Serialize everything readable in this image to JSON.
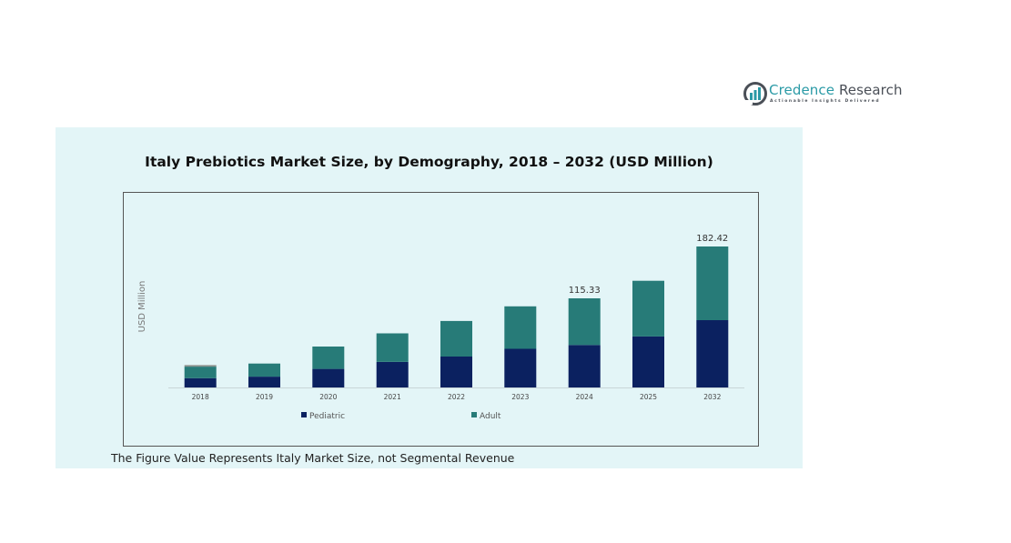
{
  "brand": {
    "name_part1": "Credence",
    "name_part2": " Research",
    "tagline": "Actionable Insights Delivered",
    "colors": {
      "teal": "#2a9aa6",
      "dark": "#4a4f57"
    }
  },
  "footer_note": "The Figure Value Represents Italy Market Size, not Segmental Revenue",
  "chart_data": {
    "type": "bar",
    "stacked": true,
    "title": "Italy Prebiotics Market Size, by Demography, 2018 – 2032 (USD Million)",
    "xlabel": "",
    "ylabel": "USD Million",
    "categories": [
      "2018",
      "2019",
      "2020",
      "2021",
      "2022",
      "2023",
      "2024",
      "2025",
      "2032"
    ],
    "series": [
      {
        "name": "Pediatric",
        "color": "#0b2160",
        "values": [
          12,
          14,
          24,
          33,
          40,
          50,
          55.0,
          66,
          87.1
        ]
      },
      {
        "name": "Adult",
        "color": "#277b78",
        "values": [
          15,
          17,
          29,
          37,
          46,
          55,
          60.33,
          72,
          95.32
        ]
      },
      {
        "name": "Other",
        "color": "#8a8f8c",
        "values": [
          2,
          0,
          0,
          0,
          0,
          0,
          0,
          0,
          0
        ],
        "in_legend": false
      }
    ],
    "data_labels": [
      {
        "category": "2024",
        "text": "115.33"
      },
      {
        "category": "2032",
        "text": "182.42"
      }
    ],
    "ylim": [
      0,
      182.42
    ],
    "grid": false,
    "legend": {
      "position": "bottom",
      "entries": [
        "Pediatric",
        "Adult"
      ]
    }
  }
}
